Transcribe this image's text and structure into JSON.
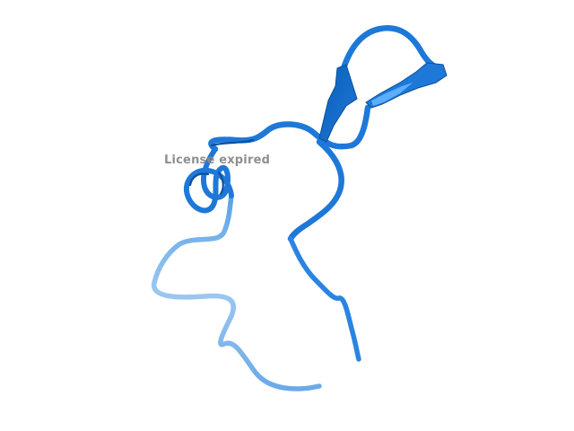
{
  "viewer": {
    "watermark_text": "License expired"
  },
  "molecule": {
    "representation": "cartoon",
    "colors": {
      "dark": "#0b5fb8",
      "main": "#1e78d8",
      "light": "#3c96ee",
      "pale": "#8fc0ee",
      "highlight": "#62b4ff"
    }
  }
}
